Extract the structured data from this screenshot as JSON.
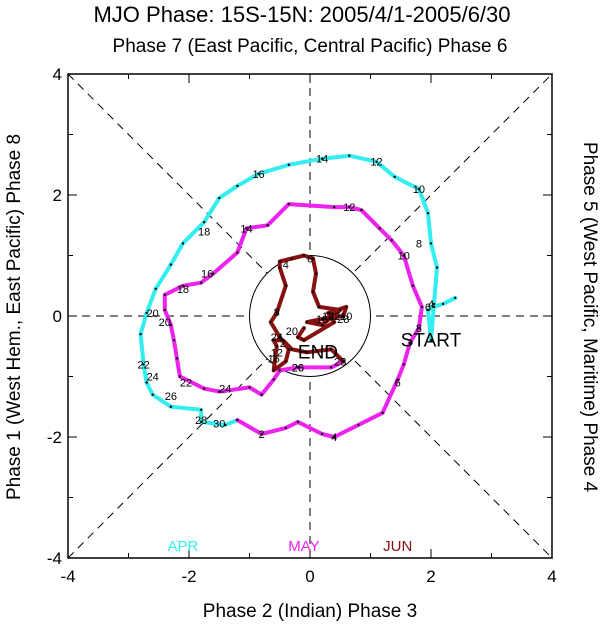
{
  "chart_data": {
    "type": "line",
    "title": "MJO Phase: 15S-15N: 2005/4/1-2005/6/30",
    "top_label": "Phase 7 (East Pacific, Central Pacific) Phase 6",
    "xlabel": "Phase 2 (Indian) Phase 3",
    "ylabel_left": "Phase 1 (West Hem., East Pacific) Phase 8",
    "ylabel_right": "Phase 5 (West Pacific, Maritime) Phase 4",
    "xlim": [
      -4,
      4
    ],
    "ylim": [
      -4,
      4
    ],
    "xticks": [
      "-4",
      "-2",
      "0",
      "2",
      "4"
    ],
    "yticks": [
      "-4",
      "-2",
      "0",
      "2",
      "4"
    ],
    "unit_circle_radius": 1,
    "start_label": "START",
    "end_label": "END",
    "series": [
      {
        "name": "APR",
        "color": "#33eeee",
        "points": [
          [
            2.4,
            0.3
          ],
          [
            2.2,
            0.2
          ],
          [
            2.05,
            0.15
          ],
          [
            1.95,
            0.1
          ],
          [
            2.0,
            -0.4
          ],
          [
            2.05,
            0.2
          ],
          [
            2.1,
            0.8
          ],
          [
            2.0,
            1.2
          ],
          [
            1.95,
            1.7
          ],
          [
            1.8,
            2.1
          ],
          [
            1.4,
            2.3
          ],
          [
            1.1,
            2.55
          ],
          [
            0.65,
            2.65
          ],
          [
            0.2,
            2.6
          ],
          [
            -0.35,
            2.5
          ],
          [
            -0.85,
            2.35
          ],
          [
            -1.2,
            2.15
          ],
          [
            -1.5,
            1.95
          ],
          [
            -1.75,
            1.55
          ],
          [
            -2.1,
            1.2
          ],
          [
            -2.3,
            0.85
          ],
          [
            -2.55,
            0.45
          ],
          [
            -2.7,
            0.05
          ],
          [
            -2.8,
            -0.3
          ],
          [
            -2.75,
            -0.8
          ],
          [
            -2.7,
            -1.1
          ],
          [
            -2.6,
            -1.3
          ],
          [
            -2.3,
            -1.5
          ],
          [
            -1.8,
            -1.55
          ],
          [
            -1.8,
            -1.75
          ],
          [
            -1.4,
            -1.8
          ],
          [
            -1.2,
            -1.72
          ]
        ]
      },
      {
        "name": "MAY",
        "color": "#ee22ee",
        "points": [
          [
            -1.2,
            -1.72
          ],
          [
            -0.8,
            -1.95
          ],
          [
            -0.4,
            -1.85
          ],
          [
            -0.2,
            -1.75
          ],
          [
            0.2,
            -1.95
          ],
          [
            0.4,
            -2.0
          ],
          [
            0.8,
            -1.8
          ],
          [
            1.2,
            -1.6
          ],
          [
            1.45,
            -1.05
          ],
          [
            1.55,
            -0.8
          ],
          [
            1.65,
            -0.45
          ],
          [
            1.8,
            -0.2
          ],
          [
            1.85,
            0.15
          ],
          [
            1.7,
            0.5
          ],
          [
            1.55,
            1.0
          ],
          [
            1.35,
            1.25
          ],
          [
            1.15,
            1.45
          ],
          [
            0.85,
            1.75
          ],
          [
            0.65,
            1.8
          ],
          [
            0.4,
            1.8
          ],
          [
            -0.35,
            1.85
          ],
          [
            -0.7,
            1.5
          ],
          [
            -1.05,
            1.45
          ],
          [
            -1.2,
            1.05
          ],
          [
            -1.6,
            0.7
          ],
          [
            -1.8,
            0.55
          ],
          [
            -2.1,
            0.5
          ],
          [
            -2.4,
            0.35
          ],
          [
            -2.4,
            0.1
          ],
          [
            -2.3,
            -0.15
          ],
          [
            -2.25,
            -0.4
          ],
          [
            -2.2,
            -0.7
          ],
          [
            -2.15,
            -1.0
          ],
          [
            -1.75,
            -1.2
          ],
          [
            -1.5,
            -1.25
          ],
          [
            -1.0,
            -1.18
          ],
          [
            -0.8,
            -1.3
          ],
          [
            -0.6,
            -1.05
          ],
          [
            -0.5,
            -0.9
          ],
          [
            -0.2,
            -0.85
          ],
          [
            0.35,
            -0.85
          ],
          [
            0.55,
            -0.75
          ]
        ]
      },
      {
        "name": "JUN",
        "color": "#881111",
        "points": [
          [
            0.55,
            -0.75
          ],
          [
            0.35,
            -0.55
          ],
          [
            -0.05,
            -0.6
          ],
          [
            -0.3,
            -0.55
          ],
          [
            -0.45,
            -0.4
          ],
          [
            -0.6,
            -0.4
          ],
          [
            -0.55,
            -0.5
          ],
          [
            -0.6,
            -0.9
          ],
          [
            -0.4,
            -0.75
          ],
          [
            -0.35,
            -0.55
          ],
          [
            -0.5,
            -0.35
          ],
          [
            -0.65,
            -0.1
          ],
          [
            -0.55,
            0.05
          ],
          [
            -0.4,
            0.5
          ],
          [
            -0.5,
            0.8
          ],
          [
            -0.5,
            0.9
          ],
          [
            -0.3,
            0.95
          ],
          [
            -0.1,
            1.0
          ],
          [
            0.05,
            0.95
          ],
          [
            0.1,
            0.7
          ],
          [
            0.05,
            0.4
          ],
          [
            0.15,
            0.15
          ],
          [
            0.5,
            0.1
          ],
          [
            0.2,
            -0.15
          ],
          [
            -0.05,
            -0.1
          ],
          [
            0.2,
            -0.05
          ],
          [
            0.55,
            0.0
          ],
          [
            0.6,
            0.15
          ],
          [
            0.3,
            0.05
          ],
          [
            0.4,
            -0.1
          ],
          [
            -0.1,
            -0.4
          ],
          [
            -0.2,
            -0.35
          ],
          [
            -0.1,
            -0.2
          ]
        ]
      }
    ],
    "day_labels": [
      {
        "text": "4",
        "x": 2.0,
        "y": 0.2,
        "color": "#000000"
      },
      {
        "text": "6",
        "x": 1.95,
        "y": 0.15,
        "color": "#000000"
      },
      {
        "text": "8",
        "x": 1.8,
        "y": 1.2,
        "color": "#000000"
      },
      {
        "text": "10",
        "x": 1.8,
        "y": 2.1,
        "color": "#000000"
      },
      {
        "text": "12",
        "x": 1.1,
        "y": 2.55,
        "color": "#000000"
      },
      {
        "text": "14",
        "x": 0.2,
        "y": 2.6,
        "color": "#000000"
      },
      {
        "text": "16",
        "x": -0.85,
        "y": 2.35,
        "color": "#000000"
      },
      {
        "text": "18",
        "x": -1.75,
        "y": 1.4,
        "color": "#000000"
      },
      {
        "text": "20",
        "x": -2.6,
        "y": 0.05,
        "color": "#000000"
      },
      {
        "text": "22",
        "x": -2.75,
        "y": -0.8,
        "color": "#000000"
      },
      {
        "text": "24",
        "x": -2.6,
        "y": -1.0,
        "color": "#000000"
      },
      {
        "text": "26",
        "x": -2.3,
        "y": -1.32,
        "color": "#000000"
      },
      {
        "text": "28",
        "x": -1.8,
        "y": -1.72,
        "color": "#000000"
      },
      {
        "text": "30",
        "x": -1.5,
        "y": -1.78,
        "color": "#000000"
      },
      {
        "text": "2",
        "x": -0.8,
        "y": -1.95,
        "color": "#000000"
      },
      {
        "text": "4",
        "x": 0.4,
        "y": -2.0,
        "color": "#000000"
      },
      {
        "text": "6",
        "x": 1.45,
        "y": -1.1,
        "color": "#000000"
      },
      {
        "text": "8",
        "x": 1.8,
        "y": -0.2,
        "color": "#000000"
      },
      {
        "text": "10",
        "x": 1.55,
        "y": 1.0,
        "color": "#000000"
      },
      {
        "text": "12",
        "x": 0.65,
        "y": 1.8,
        "color": "#000000"
      },
      {
        "text": "14",
        "x": -1.05,
        "y": 1.45,
        "color": "#000000"
      },
      {
        "text": "16",
        "x": -1.7,
        "y": 0.7,
        "color": "#000000"
      },
      {
        "text": "18",
        "x": -2.1,
        "y": 0.45,
        "color": "#000000"
      },
      {
        "text": "20",
        "x": -2.4,
        "y": -0.1,
        "color": "#000000"
      },
      {
        "text": "22",
        "x": -2.05,
        "y": -1.1,
        "color": "#000000"
      },
      {
        "text": "24",
        "x": -1.4,
        "y": -1.2,
        "color": "#000000"
      },
      {
        "text": "26",
        "x": -0.2,
        "y": -0.85,
        "color": "#000000"
      },
      {
        "text": "28",
        "x": 0.5,
        "y": -0.75,
        "color": "#000000"
      },
      {
        "text": "2",
        "x": -0.45,
        "y": -0.45,
        "color": "#000000"
      },
      {
        "text": "4",
        "x": -0.4,
        "y": 0.85,
        "color": "#000000"
      },
      {
        "text": "6",
        "x": 0.0,
        "y": 0.95,
        "color": "#000000"
      },
      {
        "text": "8",
        "x": -0.55,
        "y": 0.07,
        "color": "#000000"
      },
      {
        "text": "10",
        "x": 0.6,
        "y": 0.0,
        "color": "#000000"
      },
      {
        "text": "12",
        "x": -0.55,
        "y": -0.6,
        "color": "#000000"
      },
      {
        "text": "14",
        "x": 0.3,
        "y": 0.0,
        "color": "#000000"
      },
      {
        "text": "16",
        "x": -0.6,
        "y": -0.7,
        "color": "#000000"
      },
      {
        "text": "18",
        "x": 0.2,
        "y": -0.05,
        "color": "#000000"
      },
      {
        "text": "20",
        "x": -0.3,
        "y": -0.25,
        "color": "#000000"
      },
      {
        "text": "22",
        "x": 0.4,
        "y": 0.0,
        "color": "#000000"
      },
      {
        "text": "24",
        "x": -0.55,
        "y": -0.35,
        "color": "#000000"
      },
      {
        "text": "26",
        "x": -0.2,
        "y": -0.85,
        "color": "#000000"
      },
      {
        "text": "28",
        "x": 0.55,
        "y": -0.05,
        "color": "#000000"
      }
    ],
    "legend": [
      {
        "text": "APR",
        "color": "#33eeee"
      },
      {
        "text": "MAY",
        "color": "#ee22ee"
      },
      {
        "text": "JUN",
        "color": "#881111"
      }
    ]
  }
}
